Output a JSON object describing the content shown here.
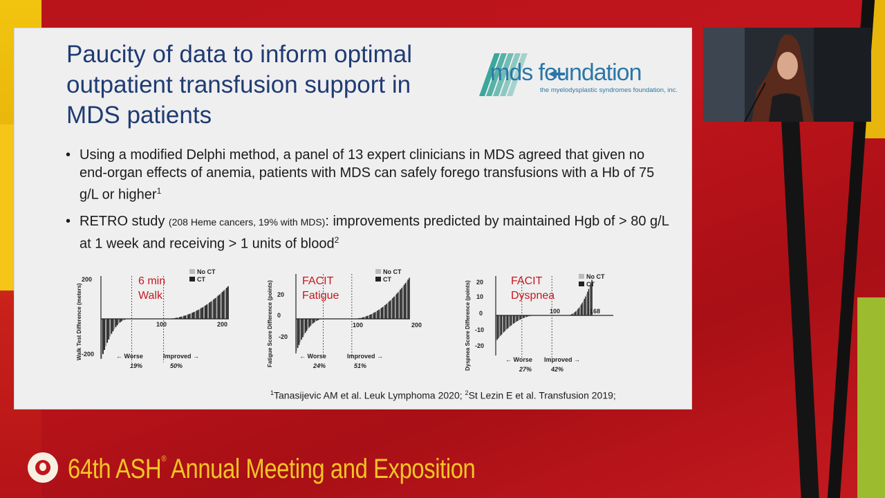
{
  "slide": {
    "title": "Paucity of data to inform optimal outpatient transfusion support in MDS patients",
    "logo": {
      "text": "mds foundation",
      "tagline": "the myelodysplastic syndromes foundation, inc."
    },
    "bullets": [
      {
        "text": "Using a modified Delphi method, a panel of 13 expert clinicians in MDS agreed that given no end-organ effects of anemia, patients with MDS can safely forego transfusions with a Hb of 75 g/L or higher",
        "sup": "1"
      },
      {
        "lead": "RETRO study ",
        "small": "(208 Heme cancers, 19% with MDS)",
        "text": ": improvements predicted by maintained Hgb of > 80 g/L at 1 week and receiving > 1 units of blood",
        "sup": "2"
      }
    ],
    "references": {
      "sup1": "1",
      "ref1": "Tanasijevic AM et al.  Leuk Lymphoma 2020; ",
      "sup2": "2",
      "ref2": "St Lezin E et al.  Transfusion 2019;"
    }
  },
  "chart_data": [
    {
      "type": "bar",
      "title_lines": [
        "6 min",
        "Walk"
      ],
      "ylabel": "Walk Test Difference (meters)",
      "yticks": [
        "200",
        "-200"
      ],
      "xticks": [
        "100",
        "200"
      ],
      "legend": [
        "No CT",
        "CT"
      ],
      "ylim": [
        -250,
        250
      ],
      "xlim": [
        0,
        200
      ],
      "worse_label": "← Worse",
      "improved_label": "Improved →",
      "worse_pct": "19%",
      "improved_pct": "50%",
      "profile": {
        "min": -230,
        "max": 190,
        "zero_start": 0.22,
        "zero_end": 0.5
      }
    },
    {
      "type": "bar",
      "title_lines": [
        "FACIT",
        "Fatigue"
      ],
      "ylabel": "Fatigue Score Difference (points)",
      "yticks": [
        "20",
        "0",
        "-20"
      ],
      "xticks": [
        "100",
        "200"
      ],
      "legend": [
        "No CT",
        "CT"
      ],
      "ylim": [
        -30,
        35
      ],
      "xlim": [
        0,
        200
      ],
      "worse_label": "← Worse",
      "improved_label": "Improved →",
      "worse_pct": "24%",
      "improved_pct": "51%",
      "profile": {
        "min": -25,
        "max": 32,
        "zero_start": 0.25,
        "zero_end": 0.49
      }
    },
    {
      "type": "bar",
      "title_lines": [
        "FACIT",
        "Dyspnea"
      ],
      "ylabel": "Dyspnea Score Difference (points)",
      "yticks": [
        "20",
        "10",
        "0",
        "-10",
        "-20"
      ],
      "xticks": [
        "100",
        "168"
      ],
      "legend": [
        "No CT",
        "CT"
      ],
      "ylim": [
        -20,
        20
      ],
      "xlim": [
        0,
        168
      ],
      "worse_label": "← Worse",
      "improved_label": "Improved →",
      "worse_pct": "27%",
      "improved_pct": "42%",
      "profile": {
        "min": -18,
        "max": 13,
        "zero_start": 0.27,
        "zero_end": 0.58,
        "reverse": true
      }
    }
  ],
  "footer": {
    "text": "64th ASH",
    "reg": "®",
    "text2": " Annual Meeting and Exposition"
  },
  "colors": {
    "title": "#1f3b73",
    "accent": "#c8161d",
    "footer": "#f3c524"
  }
}
